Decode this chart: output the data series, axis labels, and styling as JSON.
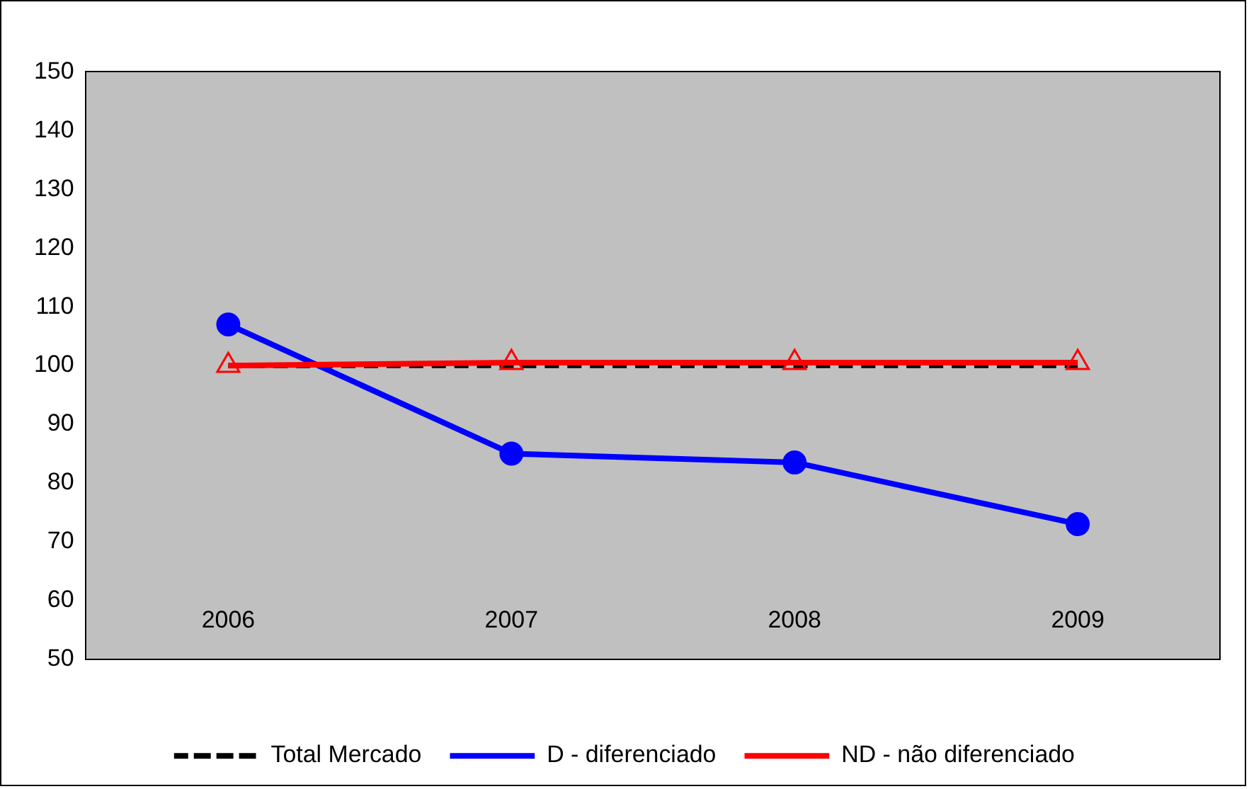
{
  "chart_data": {
    "type": "line",
    "categories": [
      "2006",
      "2007",
      "2008",
      "2009"
    ],
    "series": [
      {
        "name": "Total Mercado",
        "color": "#000000",
        "values": [
          100,
          100,
          100,
          100
        ],
        "line_style": "dashed",
        "marker": "none"
      },
      {
        "name": "D - diferenciado",
        "color": "#0000ff",
        "values": [
          107,
          85,
          83.5,
          73
        ],
        "line_style": "solid",
        "marker": "circle"
      },
      {
        "name": "ND - não diferenciado",
        "color": "#ff0000",
        "values": [
          100,
          100.5,
          100.5,
          100.5
        ],
        "line_style": "solid",
        "marker": "triangle"
      }
    ],
    "ylim": [
      50,
      150
    ],
    "yticks": [
      50,
      60,
      70,
      80,
      90,
      100,
      110,
      120,
      130,
      140,
      150
    ],
    "grid": false,
    "legend": "bottom"
  }
}
